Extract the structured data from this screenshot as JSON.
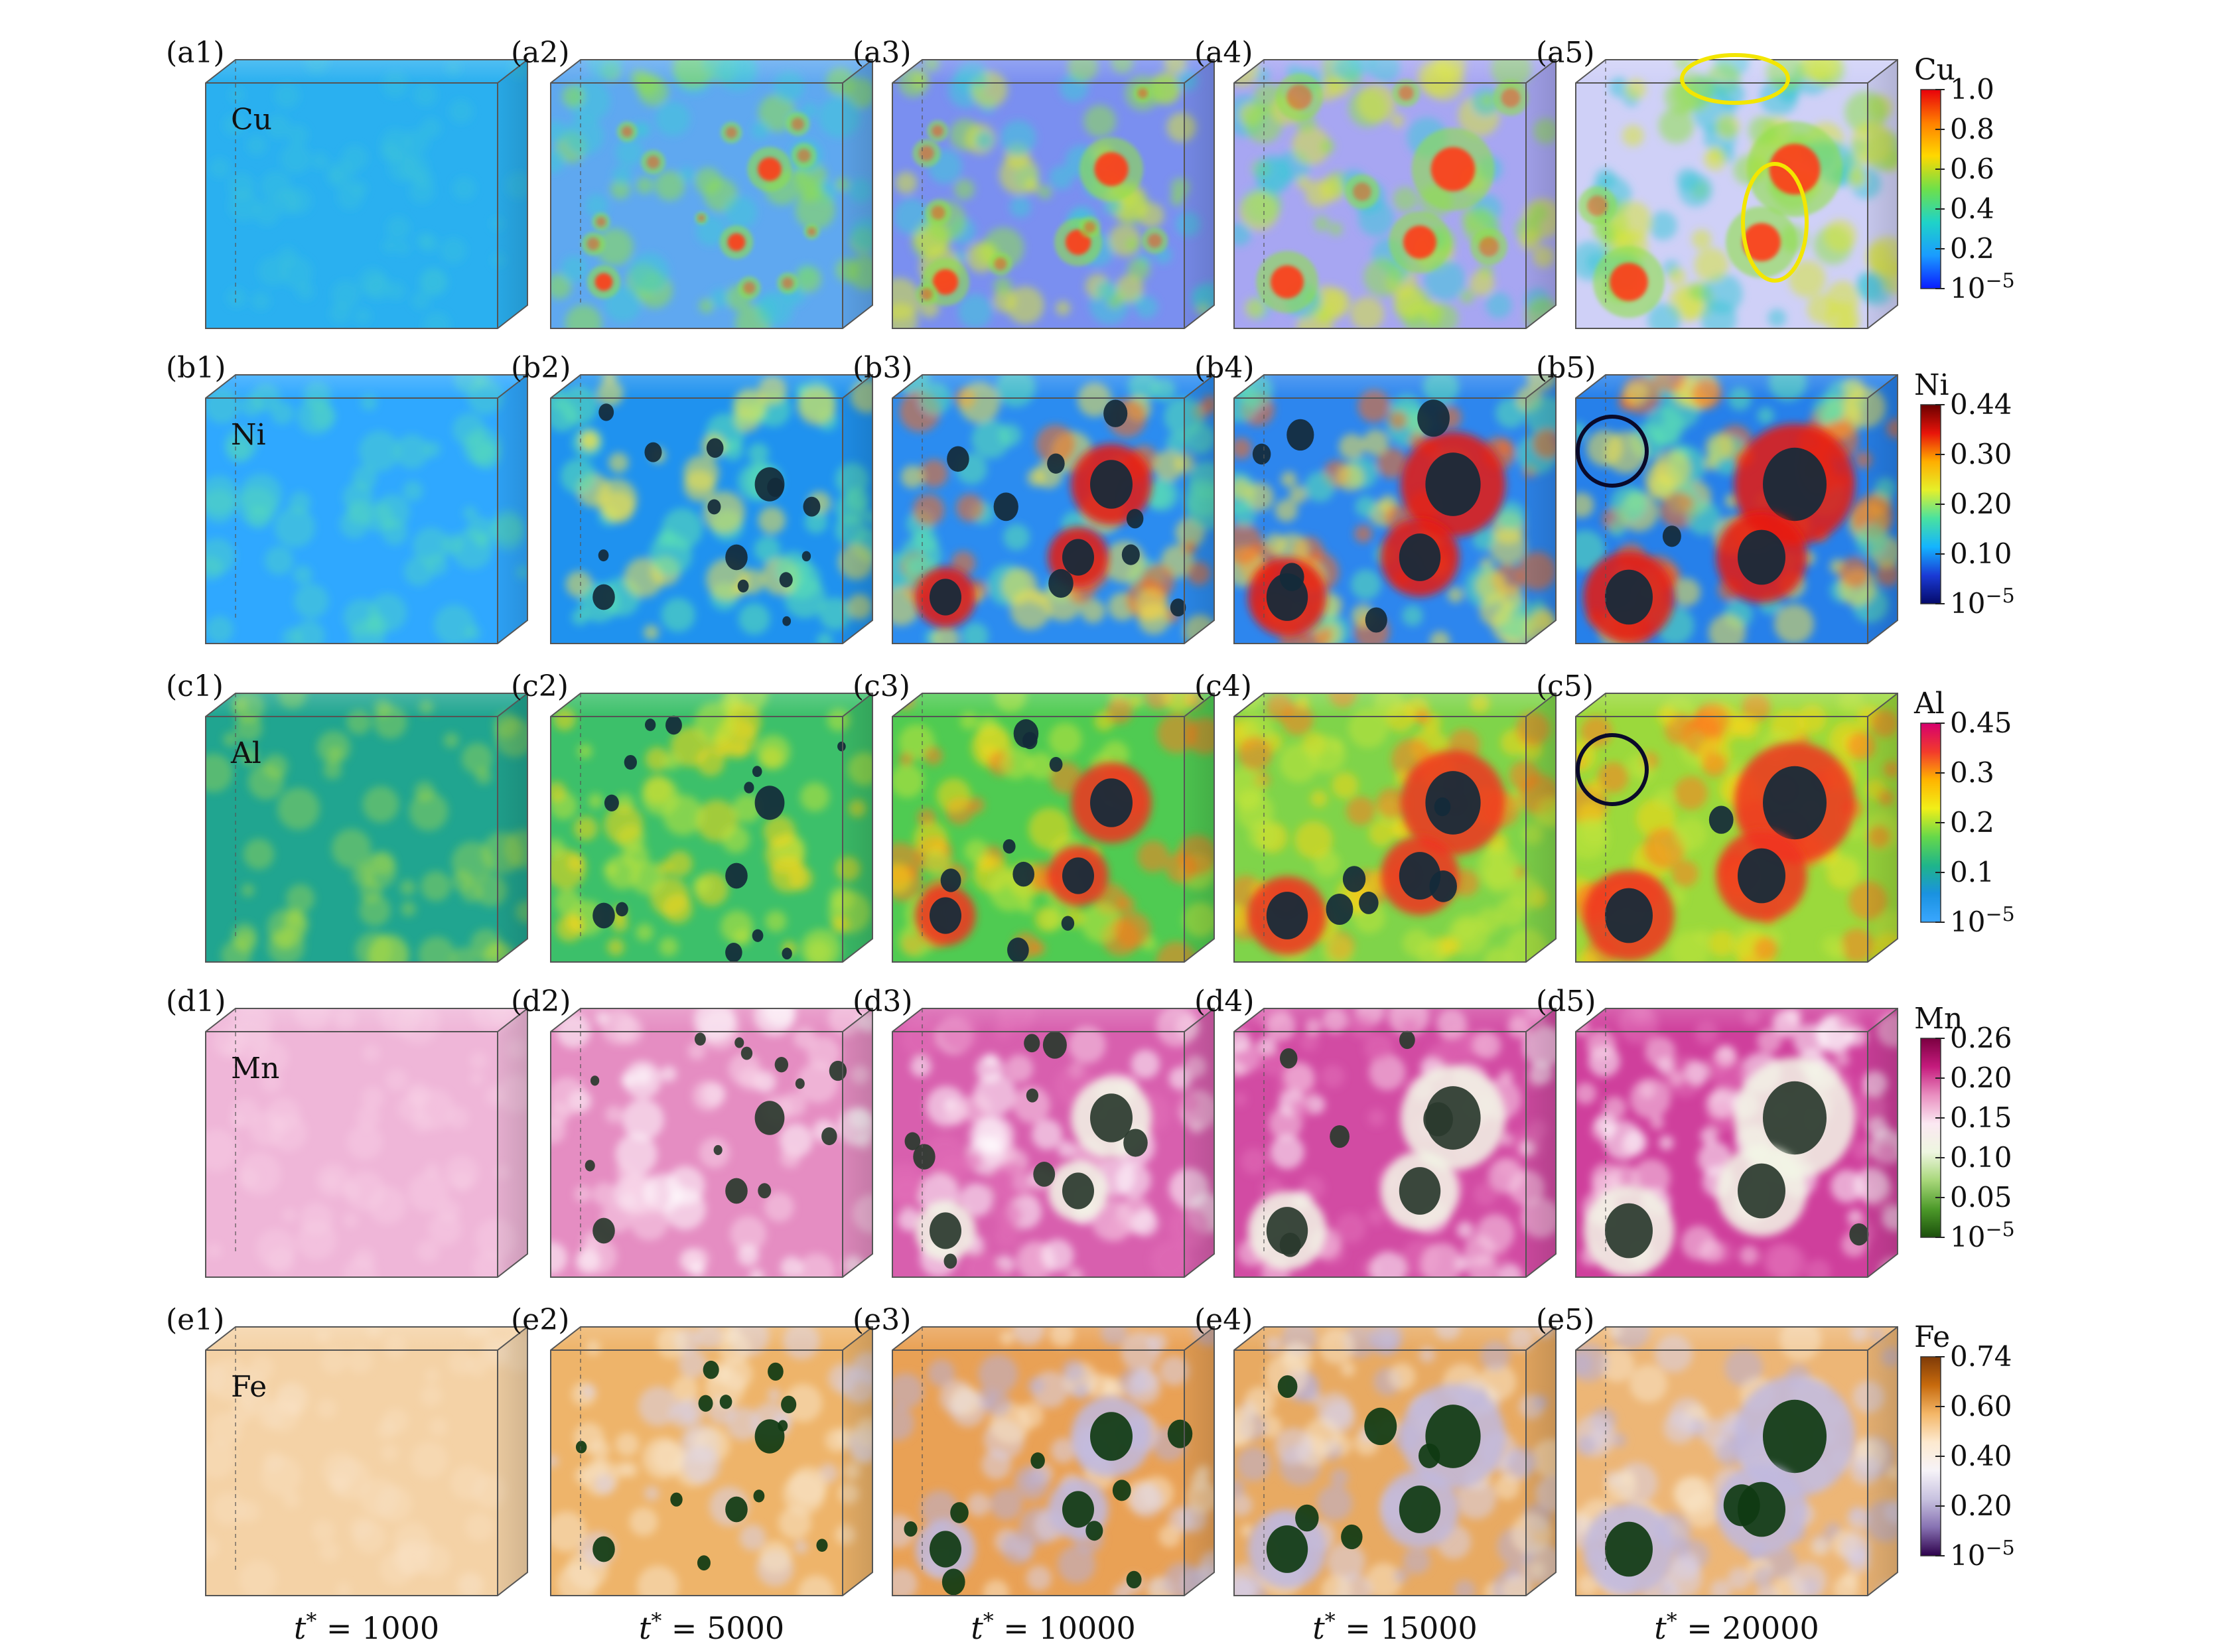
{
  "rows": [
    {
      "element": "Cu",
      "panels": [
        "(a1)",
        "(a2)",
        "(a3)",
        "(a4)",
        "(a5)"
      ],
      "colorbar": {
        "title": "Cu",
        "ticks": [
          "1.0",
          "0.8",
          "0.6",
          "0.4",
          "0.2",
          "10^-5"
        ],
        "colors": [
          "#e8000b",
          "#ff7f00",
          "#ffd800",
          "#6ee04a",
          "#1fd3c8",
          "#1a9cff",
          "#0a1cff"
        ]
      }
    },
    {
      "element": "Ni",
      "panels": [
        "(b1)",
        "(b2)",
        "(b3)",
        "(b4)",
        "(b5)"
      ],
      "colorbar": {
        "title": "Ni",
        "ticks": [
          "0.44",
          "0.30",
          "0.20",
          "0.10",
          "10^-5"
        ],
        "colors": [
          "#6a0000",
          "#e8140a",
          "#ffae00",
          "#e5f02a",
          "#49e2a0",
          "#14b4ff",
          "#1a3bd6",
          "#050a6a"
        ]
      }
    },
    {
      "element": "Al",
      "panels": [
        "(c1)",
        "(c2)",
        "(c3)",
        "(c4)",
        "(c5)"
      ],
      "colorbar": {
        "title": "Al",
        "ticks": [
          "0.45",
          "0.3",
          "0.2",
          "0.1",
          "10^-5"
        ],
        "colors": [
          "#d6006e",
          "#f23a2c",
          "#ffb400",
          "#f1ef18",
          "#66d84a",
          "#1fb58a",
          "#1a92e0",
          "#3aa7ff"
        ]
      }
    },
    {
      "element": "Mn",
      "panels": [
        "(d1)",
        "(d2)",
        "(d3)",
        "(d4)",
        "(d5)"
      ],
      "colorbar": {
        "title": "Mn",
        "ticks": [
          "0.26",
          "0.20",
          "0.15",
          "0.10",
          "0.05",
          "10^-5"
        ],
        "colors": [
          "#7a0040",
          "#c51b7d",
          "#e98fc0",
          "#fbe8f2",
          "#eef6e0",
          "#a8d77a",
          "#4d9a2a",
          "#1b4f0c"
        ]
      }
    },
    {
      "element": "Fe",
      "panels": [
        "(e1)",
        "(e2)",
        "(e3)",
        "(e4)",
        "(e5)"
      ],
      "colorbar": {
        "title": "Fe",
        "ticks": [
          "0.74",
          "0.60",
          "0.40",
          "0.20",
          "10^-5"
        ],
        "colors": [
          "#7f3b08",
          "#c76a0d",
          "#f3b667",
          "#fde9cf",
          "#f6f3f8",
          "#c8c2e0",
          "#8772b2",
          "#2d004b"
        ]
      }
    }
  ],
  "time_labels": [
    "t* = 1000",
    "t* = 5000",
    "t* = 10000",
    "t* = 15000",
    "t* = 20000"
  ],
  "time_values": [
    1000,
    5000,
    10000,
    15000,
    20000
  ],
  "markers": {
    "cu_late_highlight_color": "#f3e600",
    "ni_al_highlight_color": "#0a0a2a"
  }
}
